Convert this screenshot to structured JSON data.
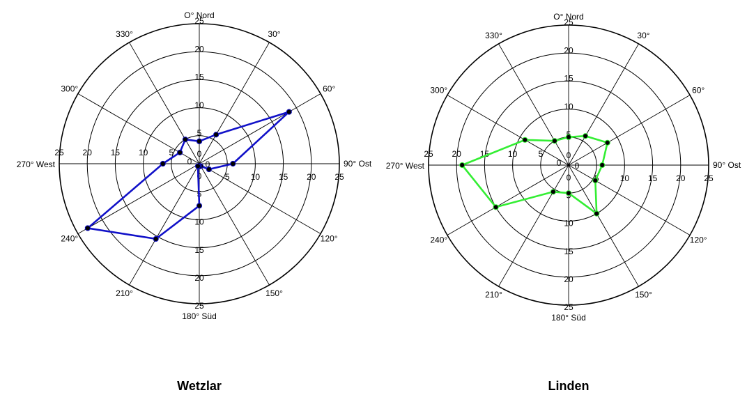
{
  "chart_data": [
    {
      "type": "polar-line",
      "title": "Wetzlar",
      "rlim": [
        0,
        25
      ],
      "rticks": [
        0,
        5,
        10,
        15,
        20,
        25
      ],
      "angle_labels": {
        "0": "O° Nord",
        "30": "30°",
        "60": "60°",
        "90": "90° Ost",
        "120": "120°",
        "150": "150°",
        "180": "180° Süd",
        "210": "210°",
        "240": "240°",
        "270": "270° West",
        "300": "300°",
        "330": "330°"
      },
      "series": [
        {
          "color": "#1010c8",
          "points": [
            {
              "angle": 0,
              "r": 4
            },
            {
              "angle": 30,
              "r": 6
            },
            {
              "angle": 60,
              "r": 18.5
            },
            {
              "angle": 90,
              "r": 6
            },
            {
              "angle": 120,
              "r": 2
            },
            {
              "angle": 150,
              "r": 0.5
            },
            {
              "angle": 180,
              "r": 0.5
            },
            {
              "angle": 210,
              "r": 0.5
            },
            {
              "angle": 180,
              "r": 7.5
            },
            {
              "angle": 210,
              "r": 15.5
            },
            {
              "angle": 240,
              "r": 23
            },
            {
              "angle": 270,
              "r": 6.5
            },
            {
              "angle": 300,
              "r": 4
            },
            {
              "angle": 330,
              "r": 5
            },
            {
              "angle": 0,
              "r": 4
            }
          ]
        }
      ]
    },
    {
      "type": "polar-line",
      "title": "Linden",
      "rlim": [
        0,
        25
      ],
      "rticks": [
        0,
        5,
        10,
        15,
        20,
        25
      ],
      "angle_labels": {
        "0": "O° Nord",
        "30": "30°",
        "60": "60°",
        "90": "90° Ost",
        "120": "120°",
        "150": "150°",
        "180": "180° Süd",
        "210": "210°",
        "240": "240°",
        "270": "270° West",
        "300": "300°",
        "330": "330°"
      },
      "series": [
        {
          "color": "#33ee33",
          "points": [
            {
              "angle": 0,
              "r": 5
            },
            {
              "angle": 30,
              "r": 6
            },
            {
              "angle": 60,
              "r": 8
            },
            {
              "angle": 90,
              "r": 6
            },
            {
              "angle": 120,
              "r": 5.5
            },
            {
              "angle": 150,
              "r": 10
            },
            {
              "angle": 180,
              "r": 5
            },
            {
              "angle": 210,
              "r": 5.5
            },
            {
              "angle": 240,
              "r": 15
            },
            {
              "angle": 270,
              "r": 19
            },
            {
              "angle": 300,
              "r": 9
            },
            {
              "angle": 330,
              "r": 5
            },
            {
              "angle": 0,
              "r": 5
            }
          ]
        }
      ]
    }
  ]
}
